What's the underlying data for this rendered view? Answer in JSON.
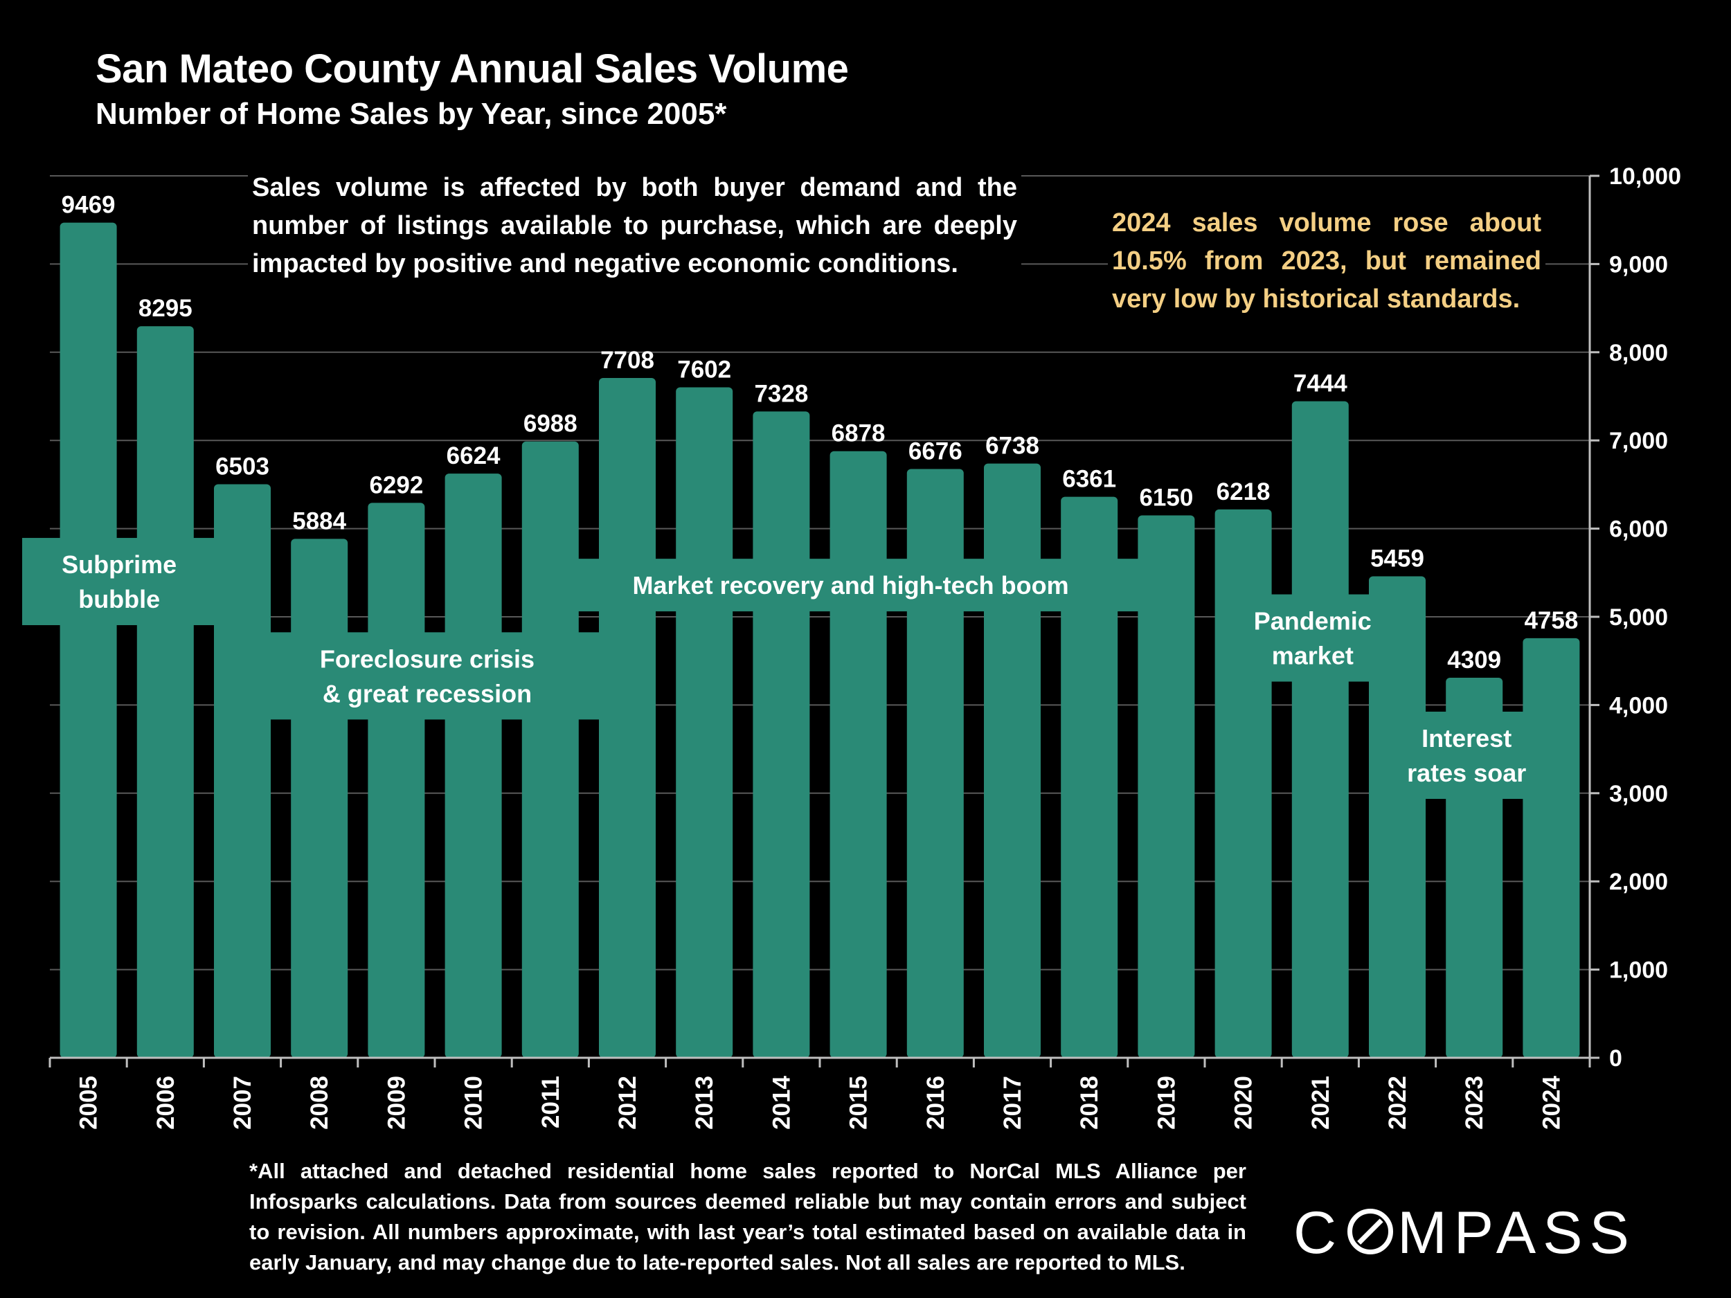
{
  "title": "San Mateo County Annual Sales Volume",
  "subtitle": "Number of Home Sales by Year, since 2005*",
  "note_left": "Sales volume is affected by both buyer demand and the number of listings available to purchase, which are deeply impacted by positive and negative economic conditions.",
  "note_right": "2024 sales volume rose about 10.5% from 2023, but remained very low by historical standards.",
  "footnote": "*All attached and detached residential home sales reported to NorCal MLS Alliance per Infosparks calculations. Data from sources deemed reliable but may contain errors and subject to revision. All numbers approximate, with last year’s total estimated based on available data in early January, and may change due to late-reported sales. Not all sales are reported to MLS.",
  "logo": {
    "before": "C",
    "after": "MPASS"
  },
  "colors": {
    "bar": "#2a8a76",
    "background": "#000000",
    "highlight_text": "#f4cf84",
    "grid": "#595959"
  },
  "chart_data": {
    "type": "bar",
    "categories": [
      "2005",
      "2006",
      "2007",
      "2008",
      "2009",
      "2010",
      "2011",
      "2012",
      "2013",
      "2014",
      "2015",
      "2016",
      "2017",
      "2018",
      "2019",
      "2020",
      "2021",
      "2022",
      "2023",
      "2024"
    ],
    "values": [
      9469,
      8295,
      6503,
      5884,
      6292,
      6624,
      6988,
      7708,
      7602,
      7328,
      6878,
      6676,
      6738,
      6361,
      6150,
      6218,
      7444,
      5459,
      4309,
      4758
    ],
    "ylim": [
      0,
      10000
    ],
    "yticks": [
      0,
      1000,
      2000,
      3000,
      4000,
      5000,
      6000,
      7000,
      8000,
      9000,
      10000
    ],
    "ytick_labels": [
      "0",
      "1,000",
      "2,000",
      "3,000",
      "4,000",
      "5,000",
      "6,000",
      "7,000",
      "8,000",
      "9,000",
      "10,000"
    ],
    "y_axis_side": "right",
    "xtick_rotation": "vertical",
    "grid": true,
    "annotations": [
      {
        "lines": [
          "Subprime",
          "bubble"
        ],
        "from": "2005",
        "to": "2006",
        "y": 5400
      },
      {
        "lines": [
          "Foreclosure crisis",
          "& great recession"
        ],
        "from": "2008",
        "to": "2011",
        "y": 4330
      },
      {
        "lines": [
          "Market recovery and high-tech boom"
        ],
        "from": "2012",
        "to": "2018",
        "y": 5360
      },
      {
        "lines": [
          "Pandemic",
          "market"
        ],
        "from": "2021",
        "to": "2021",
        "y": 4760
      },
      {
        "lines": [
          "Interest",
          "rates soar"
        ],
        "from": "2023",
        "to": "2023",
        "y": 3430
      }
    ]
  }
}
